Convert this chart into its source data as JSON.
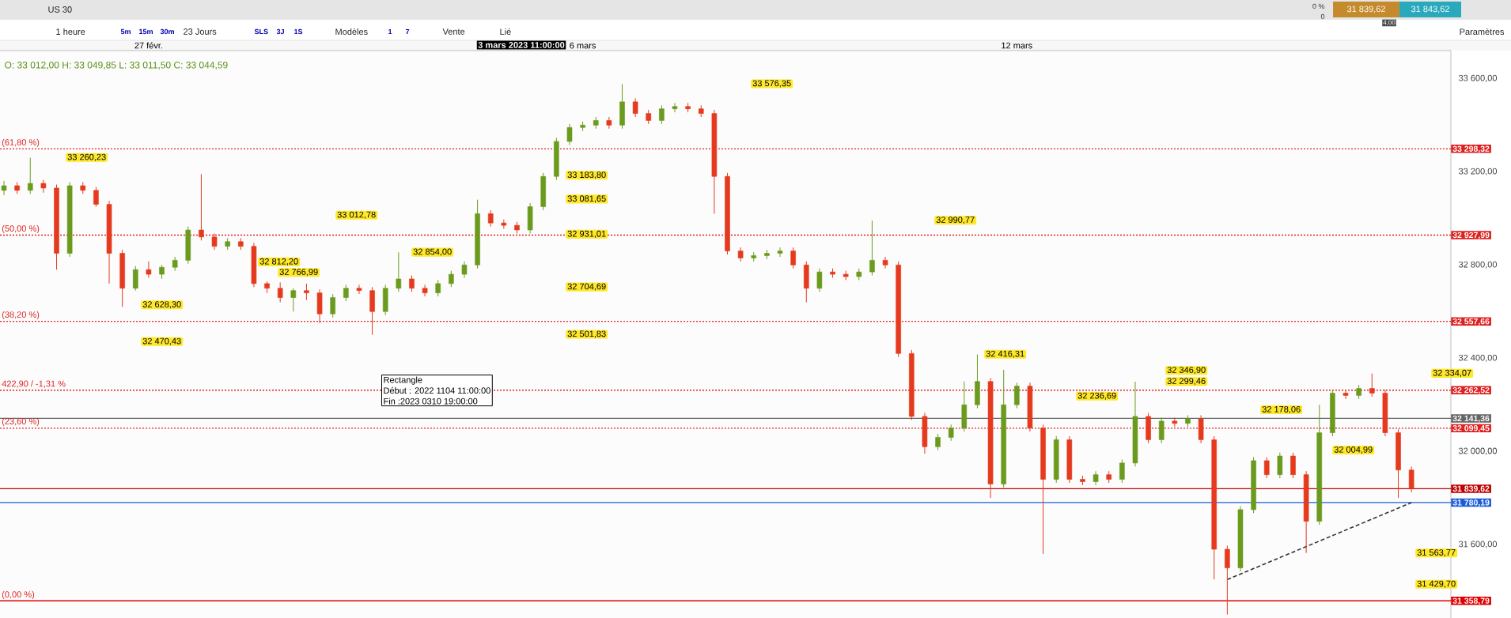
{
  "chart_data": {
    "type": "candlestick",
    "categories": [
      null,
      null,
      null,
      null,
      null,
      null,
      null,
      null,
      null,
      null,
      null,
      "27 févr.",
      null,
      null,
      null,
      null,
      null,
      null,
      null,
      null,
      null,
      null,
      null,
      null,
      null,
      null,
      null,
      null,
      null,
      null,
      null,
      null,
      null,
      null,
      null,
      null,
      null,
      null,
      null,
      null,
      null,
      null,
      null,
      null,
      "6 mars",
      null,
      null,
      null,
      null,
      null,
      null,
      null,
      null,
      null,
      null,
      null,
      null,
      null,
      null,
      null,
      null,
      null,
      null,
      null,
      null,
      null,
      null,
      null,
      null,
      null,
      null,
      null,
      null,
      null,
      null,
      null,
      null,
      "12 mars",
      null,
      null,
      null,
      null,
      null,
      null,
      null,
      null,
      null,
      null,
      null,
      null,
      null,
      null,
      null,
      null,
      null,
      null,
      null,
      null,
      null,
      null,
      null,
      null,
      null,
      null,
      null,
      null,
      null,
      null
    ],
    "colors": [
      "#6b9b1e",
      "#e53a1e",
      "#6b9b1e",
      "#e53a1e",
      "#e53a1e",
      "#6b9b1e",
      "#e53a1e",
      "#e53a1e",
      "#e53a1e",
      "#e53a1e",
      "#6b9b1e",
      "#e53a1e",
      "#6b9b1e",
      "#6b9b1e",
      "#6b9b1e",
      "#e53a1e",
      "#e53a1e",
      "#6b9b1e",
      "#e53a1e",
      "#e53a1e",
      "#e53a1e",
      "#e53a1e",
      "#6b9b1e",
      "#e53a1e",
      "#e53a1e",
      "#6b9b1e",
      "#6b9b1e",
      "#e53a1e",
      "#e53a1e",
      "#6b9b1e",
      "#6b9b1e",
      "#e53a1e",
      "#e53a1e",
      "#6b9b1e",
      "#6b9b1e",
      "#6b9b1e",
      "#6b9b1e",
      "#e53a1e",
      "#e53a1e",
      "#e53a1e",
      "#6b9b1e",
      "#6b9b1e",
      "#6b9b1e",
      "#6b9b1e",
      "#6b9b1e",
      "#6b9b1e",
      "#e53a1e",
      "#6b9b1e",
      "#e53a1e",
      "#e53a1e",
      "#6b9b1e",
      "#6b9b1e",
      "#e53a1e",
      "#e53a1e",
      "#e53a1e",
      "#e53a1e",
      "#e53a1e",
      "#6b9b1e",
      "#6b9b1e",
      "#6b9b1e",
      "#e53a1e",
      "#e53a1e",
      "#6b9b1e",
      "#e53a1e",
      "#e53a1e",
      "#6b9b1e",
      "#6b9b1e",
      "#e53a1e",
      "#e53a1e",
      "#e53a1e",
      "#e53a1e",
      "#6b9b1e",
      "#6b9b1e",
      "#6b9b1e",
      "#6b9b1e",
      "#e53a1e",
      "#6b9b1e",
      "#6b9b1e",
      "#e53a1e",
      "#e53a1e",
      "#6b9b1e",
      "#e53a1e",
      "#e53a1e",
      "#6b9b1e",
      "#e53a1e",
      "#6b9b1e",
      "#6b9b1e",
      "#e53a1e",
      "#6b9b1e",
      "#e53a1e",
      "#6b9b1e",
      "#e53a1e",
      "#e53a1e",
      "#e53a1e",
      "#6b9b1e",
      "#6b9b1e",
      "#e53a1e",
      "#6b9b1e",
      "#e53a1e",
      "#e53a1e",
      "#6b9b1e",
      "#6b9b1e",
      "#e53a1e",
      "#6b9b1e",
      "#e53a1e",
      "#e53a1e",
      "#e53a1e",
      "#e53a1e"
    ],
    "ohlc": [
      [
        33120,
        33160,
        33100,
        33140
      ],
      [
        33140,
        33155,
        33105,
        33120
      ],
      [
        33120,
        33260,
        33105,
        33150
      ],
      [
        33150,
        33165,
        33110,
        33130
      ],
      [
        33130,
        33145,
        32780,
        32850
      ],
      [
        32850,
        33155,
        32835,
        33140
      ],
      [
        33140,
        33155,
        33105,
        33120
      ],
      [
        33120,
        33135,
        33050,
        33060
      ],
      [
        33060,
        33075,
        32720,
        32850
      ],
      [
        32850,
        32865,
        32620,
        32700
      ],
      [
        32700,
        32795,
        32690,
        32780
      ],
      [
        32780,
        32815,
        32745,
        32760
      ],
      [
        32760,
        32800,
        32740,
        32790
      ],
      [
        32790,
        32835,
        32775,
        32820
      ],
      [
        32820,
        32965,
        32805,
        32950
      ],
      [
        32950,
        33190,
        32905,
        32920
      ],
      [
        32920,
        32935,
        32865,
        32880
      ],
      [
        32880,
        32915,
        32865,
        32900
      ],
      [
        32900,
        32915,
        32865,
        32880
      ],
      [
        32880,
        32895,
        32705,
        32720
      ],
      [
        32720,
        32730,
        32680,
        32700
      ],
      [
        32700,
        32725,
        32640,
        32660
      ],
      [
        32660,
        32700,
        32600,
        32690
      ],
      [
        32690,
        32720,
        32650,
        32680
      ],
      [
        32680,
        32695,
        32550,
        32590
      ],
      [
        32590,
        32675,
        32575,
        32660
      ],
      [
        32660,
        32715,
        32645,
        32700
      ],
      [
        32700,
        32715,
        32675,
        32690
      ],
      [
        32690,
        32705,
        32500,
        32600
      ],
      [
        32600,
        32715,
        32585,
        32700
      ],
      [
        32700,
        32854,
        32685,
        32740
      ],
      [
        32740,
        32755,
        32685,
        32700
      ],
      [
        32700,
        32715,
        32665,
        32680
      ],
      [
        32680,
        32735,
        32665,
        32720
      ],
      [
        32720,
        32775,
        32705,
        32760
      ],
      [
        32760,
        32815,
        32745,
        32800
      ],
      [
        32800,
        33080,
        32785,
        33020
      ],
      [
        33020,
        33035,
        32965,
        32980
      ],
      [
        32980,
        32995,
        32955,
        32970
      ],
      [
        32970,
        32985,
        32935,
        32950
      ],
      [
        32950,
        33065,
        32935,
        33050
      ],
      [
        33050,
        33195,
        33035,
        33180
      ],
      [
        33180,
        33345,
        33165,
        33330
      ],
      [
        33330,
        33405,
        33315,
        33390
      ],
      [
        33390,
        33415,
        33375,
        33400
      ],
      [
        33400,
        33435,
        33385,
        33420
      ],
      [
        33420,
        33435,
        33385,
        33400
      ],
      [
        33400,
        33576,
        33385,
        33500
      ],
      [
        33500,
        33515,
        33435,
        33450
      ],
      [
        33450,
        33465,
        33405,
        33420
      ],
      [
        33420,
        33485,
        33405,
        33470
      ],
      [
        33470,
        33495,
        33455,
        33480
      ],
      [
        33480,
        33495,
        33455,
        33470
      ],
      [
        33470,
        33485,
        33435,
        33450
      ],
      [
        33450,
        33465,
        33020,
        33180
      ],
      [
        33180,
        33195,
        32845,
        32860
      ],
      [
        32860,
        32875,
        32815,
        32830
      ],
      [
        32830,
        32855,
        32815,
        32840
      ],
      [
        32840,
        32865,
        32825,
        32850
      ],
      [
        32850,
        32875,
        32835,
        32860
      ],
      [
        32860,
        32875,
        32785,
        32800
      ],
      [
        32800,
        32815,
        32640,
        32700
      ],
      [
        32700,
        32785,
        32685,
        32770
      ],
      [
        32770,
        32785,
        32745,
        32760
      ],
      [
        32760,
        32775,
        32735,
        32750
      ],
      [
        32750,
        32785,
        32735,
        32770
      ],
      [
        32770,
        32990,
        32755,
        32820
      ],
      [
        32820,
        32835,
        32785,
        32800
      ],
      [
        32800,
        32815,
        32405,
        32420
      ],
      [
        32420,
        32435,
        32135,
        32150
      ],
      [
        32150,
        32165,
        31990,
        32020
      ],
      [
        32020,
        32075,
        32005,
        32060
      ],
      [
        32060,
        32115,
        32045,
        32100
      ],
      [
        32100,
        32300,
        32085,
        32200
      ],
      [
        32200,
        32416,
        32185,
        32300
      ],
      [
        32300,
        32315,
        31800,
        31860
      ],
      [
        31860,
        32350,
        31845,
        32200
      ],
      [
        32200,
        32295,
        32185,
        32280
      ],
      [
        32280,
        32295,
        32085,
        32100
      ],
      [
        32100,
        32115,
        31560,
        31880
      ],
      [
        31880,
        32065,
        31865,
        32050
      ],
      [
        32050,
        32065,
        31865,
        31880
      ],
      [
        31880,
        31895,
        31855,
        31870
      ],
      [
        31870,
        31915,
        31855,
        31900
      ],
      [
        31900,
        31915,
        31865,
        31880
      ],
      [
        31880,
        31965,
        31865,
        31950
      ],
      [
        31950,
        32299,
        31935,
        32150
      ],
      [
        32150,
        32165,
        32035,
        32050
      ],
      [
        32050,
        32145,
        32035,
        32130
      ],
      [
        32130,
        32145,
        32105,
        32120
      ],
      [
        32120,
        32155,
        32105,
        32140
      ],
      [
        32140,
        32155,
        32035,
        32050
      ],
      [
        32050,
        32065,
        31450,
        31580
      ],
      [
        31580,
        31595,
        31300,
        31500
      ],
      [
        31500,
        31765,
        31485,
        31750
      ],
      [
        31750,
        31975,
        31735,
        31960
      ],
      [
        31960,
        31975,
        31885,
        31900
      ],
      [
        31900,
        31995,
        31885,
        31980
      ],
      [
        31980,
        31995,
        31885,
        31900
      ],
      [
        31900,
        31915,
        31564,
        31700
      ],
      [
        31700,
        32200,
        31685,
        32080
      ],
      [
        32080,
        32265,
        32065,
        32250
      ],
      [
        32250,
        32265,
        32225,
        32240
      ],
      [
        32240,
        32285,
        32225,
        32270
      ],
      [
        32270,
        32334,
        32235,
        32250
      ],
      [
        32250,
        32265,
        32065,
        32080
      ],
      [
        32080,
        32095,
        31800,
        31920
      ],
      [
        31920,
        31935,
        31825,
        31840
      ]
    ],
    "series": [
      {
        "type": "line",
        "values": [
          null,
          null,
          null,
          null,
          null,
          null,
          null,
          null,
          null,
          null,
          null,
          null,
          null,
          null,
          null,
          null,
          null,
          null,
          null,
          null,
          null,
          null,
          null,
          null,
          null,
          null,
          null,
          null,
          null,
          null,
          null,
          null,
          null,
          null,
          null,
          null,
          null,
          null,
          null,
          null,
          null,
          null,
          null,
          null,
          null,
          null,
          null,
          null,
          null,
          null,
          null,
          null,
          null,
          null,
          null,
          null,
          null,
          null,
          null,
          null,
          null,
          null,
          null,
          null,
          null,
          null,
          null,
          null,
          null,
          null,
          null,
          null,
          null,
          null,
          null,
          null,
          null,
          null,
          null,
          null,
          null,
          null,
          null,
          null,
          null,
          null,
          null,
          null,
          null,
          null,
          null,
          null,
          null,
          31450,
          null,
          null,
          null,
          null,
          null,
          null,
          null,
          null,
          null,
          null,
          null,
          null,
          null,
          31780
        ],
        "color": "#333333",
        "line_style": "dashed"
      }
    ],
    "ylim": [
      31285,
      33720
    ],
    "yticks": [
      {
        "value": 31600,
        "label": "31 600,00"
      },
      {
        "value": 32000,
        "label": "32 000,00"
      },
      {
        "value": 32400,
        "label": "32 400,00"
      },
      {
        "value": 32800,
        "label": "32 800,00"
      },
      {
        "value": 33200,
        "label": "33 200,00"
      },
      {
        "value": 33600,
        "label": "33 600,00"
      }
    ],
    "y2lim": [
      31285,
      33720
    ],
    "y2ticks": [
      {
        "value": 33298.32,
        "label": "33 298,32"
      },
      {
        "value": 32927.99,
        "label": "32 927,99"
      },
      {
        "value": 32557.66,
        "label": "32 557,66"
      },
      {
        "value": 32262.52,
        "label": "32 262,52"
      },
      {
        "value": 32141.36,
        "label": "32 141,36"
      },
      {
        "value": 32099.45,
        "label": "32 099,45"
      },
      {
        "value": 31839.62,
        "label": "31 839,62"
      },
      {
        "value": 31780.19,
        "label": "31 780,19"
      },
      {
        "value": 31358.79,
        "label": "31 358,79"
      }
    ],
    "ref_lines": [
      {
        "axis": "y",
        "value": 33298.32,
        "color": "#e02020",
        "line_style": "dotted"
      },
      {
        "axis": "y",
        "value": 32927.99,
        "color": "#e02020",
        "line_style": "dotted"
      },
      {
        "axis": "y",
        "value": 32557.66,
        "color": "#e02020",
        "line_style": "dotted"
      },
      {
        "axis": "y",
        "value": 32262.52,
        "color": "#e02020",
        "line_style": "dotted"
      },
      {
        "axis": "y",
        "value": 32099.45,
        "color": "#e02020",
        "line_style": "dotted"
      },
      {
        "axis": "y",
        "value": 32141.36,
        "color": "#666666",
        "line_style": "solid"
      },
      {
        "axis": "y",
        "value": 31839.62,
        "color": "#c00000",
        "line_style": "solid"
      },
      {
        "axis": "y",
        "value": 31780.19,
        "color": "#1a5fd8",
        "line_style": "solid"
      },
      {
        "axis": "y",
        "value": 31358.79,
        "color": "#e00000",
        "line_style": "solid"
      }
    ],
    "annotations": [
      "O: 33 012,00   H: 33 049,85   L: 33 011,50   C: 33 044,59",
      "Rectangle",
      "Début : 2022 1104 11:00:00",
      "Fin :2023 0310 19:00:00",
      "US 30",
      "1 heure",
      "5m",
      "15m",
      "30m",
      "23 Jours",
      "SLS",
      "3J",
      "1S",
      "Modèles",
      "1",
      "7",
      "Vente",
      "Lié",
      "Paramètres",
      "0 %",
      "0",
      "31 839,62",
      "31 843,62",
      "4,00",
      "3 mars 2023 11:00:00",
      "33 260,23",
      "33 012,78",
      "32 812,20",
      "32 766,99",
      "32 628,30",
      "32 470,43",
      "32 854,00",
      "33 183,80",
      "33 081,65",
      "32 931,01",
      "32 704,69",
      "32 501,83",
      "33 576,35",
      "32 990,77",
      "32 416,31",
      "32 346,90",
      "32 299,46",
      "32 236,69",
      "32 178,06",
      "32 004,99",
      "32 334,07",
      "31 563,77",
      "31 429,70",
      "(61,80 %)",
      "(50,00 %)",
      "(38,20 %)",
      "422,90 / -1,31 %",
      "(23,60 %)",
      "(0,00 %)"
    ]
  }
}
